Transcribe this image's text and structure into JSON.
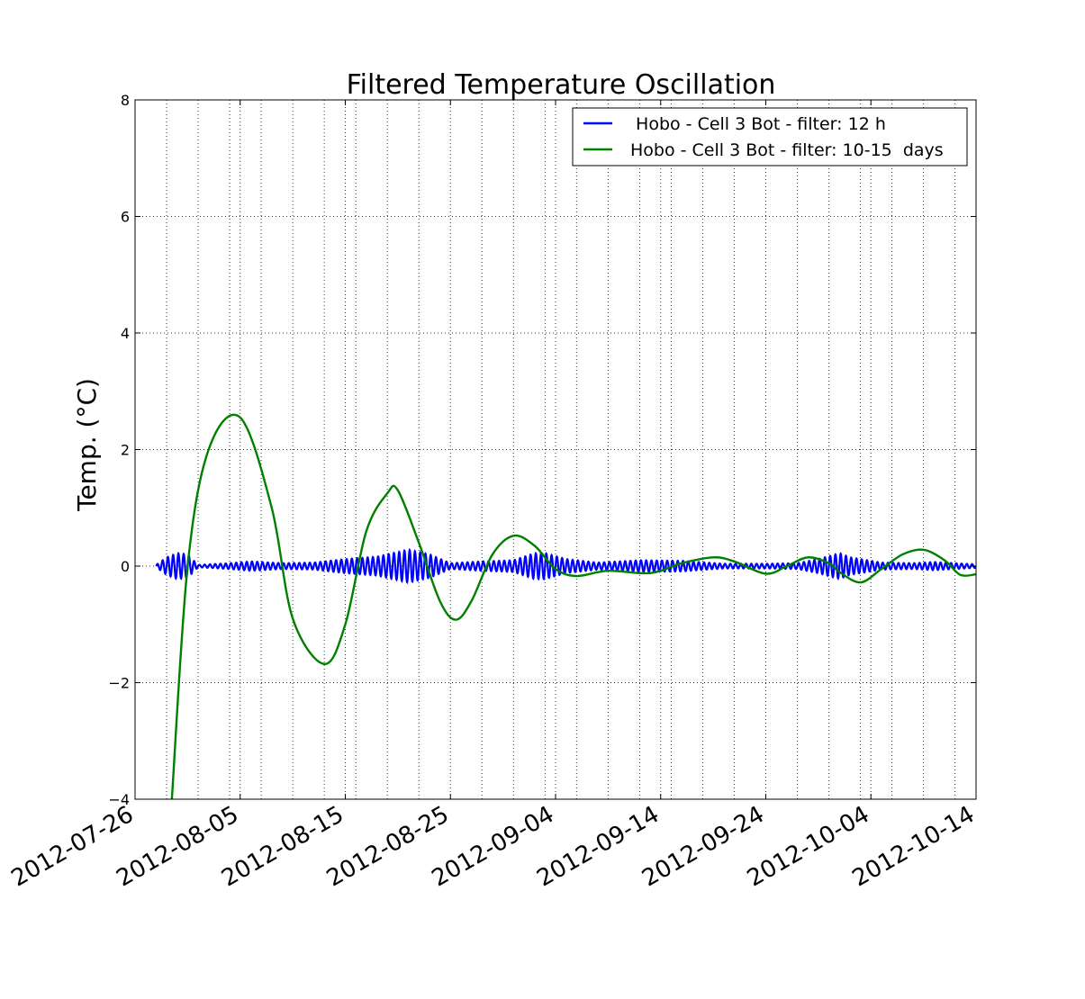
{
  "chart_data": {
    "type": "line",
    "title": "Filtered Temperature Oscillation",
    "ylabel": "Temp. (°C)",
    "xlabel": "",
    "xlim": [
      "2012-07-26",
      "2012-10-14"
    ],
    "ylim": [
      -4,
      8
    ],
    "x_ticks": [
      "2012-07-26",
      "2012-08-05",
      "2012-08-15",
      "2012-08-25",
      "2012-09-04",
      "2012-09-14",
      "2012-09-24",
      "2012-10-04",
      "2012-10-14"
    ],
    "y_ticks": [
      -4,
      -2,
      0,
      2,
      4,
      6,
      8
    ],
    "y_tick_labels": [
      "−4",
      "−2",
      "0",
      "2",
      "4",
      "6",
      "8"
    ],
    "grid": true,
    "legend_position": "top-right",
    "series": [
      {
        "name": " Hobo - Cell 3 Bot - filter: 12 h",
        "color": "#0000ff",
        "kind": "semidiurnal oscillation (12 h period)",
        "x_start": "2012-07-28",
        "x_end": "2012-10-14",
        "period_days": 0.5,
        "amplitude_envelope": [
          {
            "x": "2012-07-28",
            "y": 0.02
          },
          {
            "x": "2012-07-29",
            "y": 0.15
          },
          {
            "x": "2012-07-30",
            "y": 0.22
          },
          {
            "x": "2012-07-31",
            "y": 0.2
          },
          {
            "x": "2012-08-01",
            "y": 0.02
          },
          {
            "x": "2012-08-04",
            "y": 0.05
          },
          {
            "x": "2012-08-06",
            "y": 0.08
          },
          {
            "x": "2012-08-09",
            "y": 0.05
          },
          {
            "x": "2012-08-12",
            "y": 0.06
          },
          {
            "x": "2012-08-15",
            "y": 0.12
          },
          {
            "x": "2012-08-18",
            "y": 0.16
          },
          {
            "x": "2012-08-21",
            "y": 0.28
          },
          {
            "x": "2012-08-23",
            "y": 0.2
          },
          {
            "x": "2012-08-25",
            "y": 0.05
          },
          {
            "x": "2012-08-28",
            "y": 0.08
          },
          {
            "x": "2012-08-31",
            "y": 0.1
          },
          {
            "x": "2012-09-02",
            "y": 0.22
          },
          {
            "x": "2012-09-03",
            "y": 0.22
          },
          {
            "x": "2012-09-05",
            "y": 0.12
          },
          {
            "x": "2012-09-08",
            "y": 0.06
          },
          {
            "x": "2012-09-12",
            "y": 0.1
          },
          {
            "x": "2012-09-16",
            "y": 0.09
          },
          {
            "x": "2012-09-20",
            "y": 0.04
          },
          {
            "x": "2012-09-24",
            "y": 0.04
          },
          {
            "x": "2012-09-27",
            "y": 0.05
          },
          {
            "x": "2012-09-29",
            "y": 0.12
          },
          {
            "x": "2012-10-01",
            "y": 0.22
          },
          {
            "x": "2012-10-02",
            "y": 0.15
          },
          {
            "x": "2012-10-05",
            "y": 0.06
          },
          {
            "x": "2012-10-08",
            "y": 0.05
          },
          {
            "x": "2012-10-10",
            "y": 0.07
          },
          {
            "x": "2012-10-14",
            "y": 0.03
          }
        ]
      },
      {
        "name": "Hobo - Cell 3 Bot - filter: 10-15  days",
        "color": "#008000",
        "kind": "band-pass (10-15 days)",
        "points": [
          {
            "x": "2012-07-29.5",
            "y": -4.0
          },
          {
            "x": "2012-07-31",
            "y": 0.0
          },
          {
            "x": "2012-08-02",
            "y": 2.0
          },
          {
            "x": "2012-08-05",
            "y": 2.55
          },
          {
            "x": "2012-08-08",
            "y": 1.0
          },
          {
            "x": "2012-08-10",
            "y": -0.9
          },
          {
            "x": "2012-08-13",
            "y": -1.68
          },
          {
            "x": "2012-08-15",
            "y": -1.0
          },
          {
            "x": "2012-08-17",
            "y": 0.6
          },
          {
            "x": "2012-08-19",
            "y": 1.25
          },
          {
            "x": "2012-08-20",
            "y": 1.3
          },
          {
            "x": "2012-08-22",
            "y": 0.4
          },
          {
            "x": "2012-08-24",
            "y": -0.6
          },
          {
            "x": "2012-08-25.5",
            "y": -0.92
          },
          {
            "x": "2012-08-27",
            "y": -0.6
          },
          {
            "x": "2012-08-29",
            "y": 0.2
          },
          {
            "x": "2012-08-31",
            "y": 0.52
          },
          {
            "x": "2012-09-02",
            "y": 0.35
          },
          {
            "x": "2012-09-04",
            "y": -0.05
          },
          {
            "x": "2012-09-06",
            "y": -0.17
          },
          {
            "x": "2012-09-09",
            "y": -0.08
          },
          {
            "x": "2012-09-13",
            "y": -0.12
          },
          {
            "x": "2012-09-16",
            "y": 0.05
          },
          {
            "x": "2012-09-19",
            "y": 0.15
          },
          {
            "x": "2012-09-21",
            "y": 0.08
          },
          {
            "x": "2012-09-24",
            "y": -0.13
          },
          {
            "x": "2012-09-26",
            "y": 0.0
          },
          {
            "x": "2012-09-28",
            "y": 0.15
          },
          {
            "x": "2012-09-30",
            "y": 0.05
          },
          {
            "x": "2012-10-01",
            "y": -0.1
          },
          {
            "x": "2012-10-03",
            "y": -0.28
          },
          {
            "x": "2012-10-05",
            "y": -0.05
          },
          {
            "x": "2012-10-07",
            "y": 0.2
          },
          {
            "x": "2012-10-09",
            "y": 0.28
          },
          {
            "x": "2012-10-11",
            "y": 0.1
          },
          {
            "x": "2012-10-12.5",
            "y": -0.15
          },
          {
            "x": "2012-10-14",
            "y": -0.14
          }
        ]
      }
    ]
  }
}
